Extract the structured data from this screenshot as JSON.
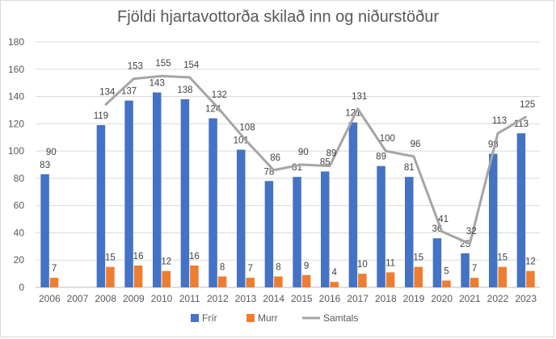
{
  "chart_data": {
    "type": "bar",
    "title": "Fjöldi hjartavottorða skilað inn og niðurstöður",
    "xlabel": "",
    "ylabel": "",
    "ylim": [
      0,
      180
    ],
    "yticks": [
      "0",
      "20",
      "40",
      "60",
      "80",
      "100",
      "120",
      "140",
      "160",
      "180"
    ],
    "grid": true,
    "legend_position": "bottom",
    "categories": [
      "2006",
      "2007",
      "2008",
      "2009",
      "2010",
      "2011",
      "2012",
      "2013",
      "2014",
      "2015",
      "2016",
      "2017",
      "2018",
      "2019",
      "2020",
      "2021",
      "2022",
      "2023"
    ],
    "series": [
      {
        "name": "Frír",
        "type": "bar",
        "color": "#4472c4",
        "values": [
          83,
          null,
          119,
          137,
          143,
          138,
          124,
          101,
          78,
          81,
          85,
          121,
          89,
          81,
          36,
          25,
          98,
          113
        ]
      },
      {
        "name": "Murr",
        "type": "bar",
        "color": "#ed7d31",
        "values": [
          7,
          null,
          15,
          16,
          12,
          16,
          8,
          7,
          8,
          9,
          4,
          10,
          11,
          15,
          5,
          7,
          15,
          12
        ]
      },
      {
        "name": "Samtals",
        "type": "line",
        "color": "#a5a5a5",
        "values": [
          90,
          null,
          134,
          153,
          155,
          154,
          132,
          108,
          86,
          90,
          89,
          131,
          100,
          96,
          41,
          32,
          113,
          125
        ]
      }
    ]
  }
}
